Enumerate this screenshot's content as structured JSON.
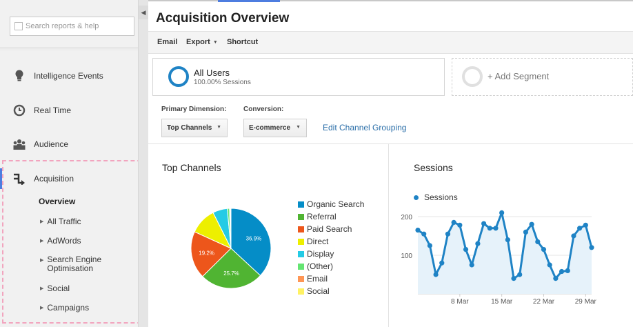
{
  "sidebar": {
    "search_placeholder": "Search reports & help",
    "items": [
      {
        "label": "Intelligence Events",
        "icon": "lightbulb-icon"
      },
      {
        "label": "Real Time",
        "icon": "clock-icon"
      },
      {
        "label": "Audience",
        "icon": "people-icon"
      },
      {
        "label": "Acquisition",
        "icon": "acquisition-arrows-icon"
      }
    ],
    "acquisition_sub": {
      "overview": "Overview",
      "items": [
        "All Traffic",
        "AdWords",
        "Search Engine\nOptimisation",
        "Social",
        "Campaigns"
      ]
    }
  },
  "header": {
    "title": "Acquisition Overview",
    "toolbar": {
      "email": "Email",
      "export": "Export",
      "shortcut": "Shortcut"
    }
  },
  "segments": {
    "active_name": "All Users",
    "active_sub": "100.00% Sessions",
    "add_label": "+ Add Segment"
  },
  "controls": {
    "primary_dimension_label": "Primary Dimension:",
    "primary_dimension_value": "Top Channels",
    "conversion_label": "Conversion:",
    "conversion_value": "E-commerce",
    "edit_link": "Edit Channel Grouping"
  },
  "colors": {
    "accent": "#1f83c5",
    "link": "#2a6ea8",
    "highlight_dashed": "#f2a4be"
  },
  "chart_data": [
    {
      "type": "pie",
      "title": "Top Channels",
      "categories": [
        "Organic Search",
        "Referral",
        "Paid Search",
        "Direct",
        "Display",
        "(Other)",
        "Email",
        "Social"
      ],
      "values": [
        36.9,
        25.7,
        19.2,
        10.8,
        5.9,
        0.9,
        0.3,
        0.3
      ],
      "colors": [
        "#058dc7",
        "#50b432",
        "#ed561b",
        "#edef00",
        "#24cbe5",
        "#64e572",
        "#ff9655",
        "#fff263"
      ],
      "data_labels": [
        "36.9%",
        "25.7%",
        "19.2%",
        "",
        "",
        "",
        "",
        ""
      ],
      "legend": "right"
    },
    {
      "type": "area",
      "title": "Sessions",
      "series": [
        {
          "name": "Sessions",
          "values": [
            165,
            155,
            125,
            50,
            80,
            155,
            185,
            178,
            115,
            75,
            130,
            182,
            170,
            170,
            210,
            140,
            40,
            50,
            160,
            180,
            135,
            115,
            75,
            40,
            58,
            60,
            150,
            170,
            178,
            120
          ]
        }
      ],
      "x_ticks": [
        "8 Mar",
        "15 Mar",
        "22 Mar",
        "29 Mar"
      ],
      "x_tick_index": [
        7,
        14,
        21,
        28
      ],
      "y_ticks": [
        100,
        200
      ],
      "ylim": [
        0,
        225
      ],
      "grid": "horizontal",
      "legend": "top-left"
    }
  ]
}
